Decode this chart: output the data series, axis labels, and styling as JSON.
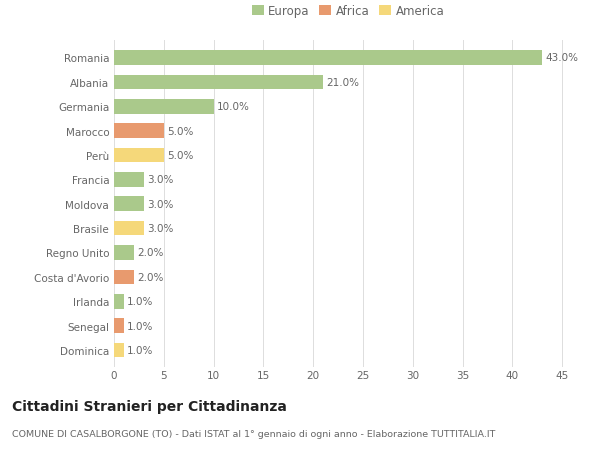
{
  "countries": [
    "Romania",
    "Albania",
    "Germania",
    "Marocco",
    "Perù",
    "Francia",
    "Moldova",
    "Brasile",
    "Regno Unito",
    "Costa d'Avorio",
    "Irlanda",
    "Senegal",
    "Dominica"
  ],
  "values": [
    43.0,
    21.0,
    10.0,
    5.0,
    5.0,
    3.0,
    3.0,
    3.0,
    2.0,
    2.0,
    1.0,
    1.0,
    1.0
  ],
  "continents": [
    "Europa",
    "Europa",
    "Europa",
    "Africa",
    "America",
    "Europa",
    "Europa",
    "America",
    "Europa",
    "Africa",
    "Europa",
    "Africa",
    "America"
  ],
  "colors": {
    "Europa": "#aac98b",
    "Africa": "#e89a6e",
    "America": "#f5d87a"
  },
  "title": "Cittadini Stranieri per Cittadinanza",
  "subtitle": "COMUNE DI CASALBORGONE (TO) - Dati ISTAT al 1° gennaio di ogni anno - Elaborazione TUTTITALIA.IT",
  "xlim": [
    0,
    47
  ],
  "xticks": [
    0,
    5,
    10,
    15,
    20,
    25,
    30,
    35,
    40,
    45
  ],
  "background_color": "#ffffff",
  "grid_color": "#dddddd",
  "bar_height": 0.6,
  "label_fontsize": 7.5,
  "title_fontsize": 10,
  "subtitle_fontsize": 6.8,
  "tick_fontsize": 7.5,
  "legend_fontsize": 8.5
}
